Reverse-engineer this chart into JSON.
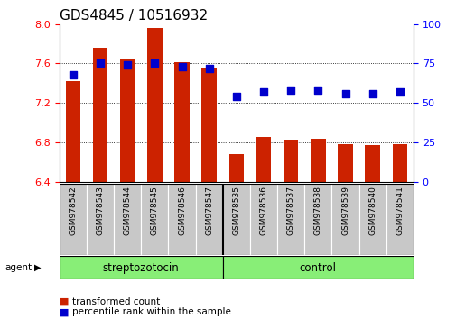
{
  "title": "GDS4845 / 10516932",
  "samples": [
    "GSM978542",
    "GSM978543",
    "GSM978544",
    "GSM978545",
    "GSM978546",
    "GSM978547",
    "GSM978535",
    "GSM978536",
    "GSM978537",
    "GSM978538",
    "GSM978539",
    "GSM978540",
    "GSM978541"
  ],
  "bar_values": [
    7.42,
    7.76,
    7.65,
    7.96,
    7.61,
    7.55,
    6.68,
    6.85,
    6.83,
    6.84,
    6.78,
    6.77,
    6.78
  ],
  "percentile_values": [
    68,
    75,
    74,
    75,
    73,
    72,
    54,
    57,
    58,
    58,
    56,
    56,
    57
  ],
  "ylim_left": [
    6.4,
    8.0
  ],
  "ylim_right": [
    0,
    100
  ],
  "yticks_left": [
    6.4,
    6.8,
    7.2,
    7.6,
    8.0
  ],
  "yticks_right": [
    0,
    25,
    50,
    75,
    100
  ],
  "bar_color": "#cc2200",
  "dot_color": "#0000cc",
  "bg_color": "#ffffff",
  "tick_area_color": "#c8c8c8",
  "group1_label": "streptozotocin",
  "group2_label": "control",
  "group_color": "#88ee77",
  "agent_label": "agent",
  "legend_bar_label": "transformed count",
  "legend_dot_label": "percentile rank within the sample",
  "n_group1": 6,
  "n_group2": 7,
  "bar_width": 0.55,
  "dot_size": 28,
  "title_fontsize": 11,
  "tick_fontsize": 8,
  "sample_fontsize": 6.5
}
